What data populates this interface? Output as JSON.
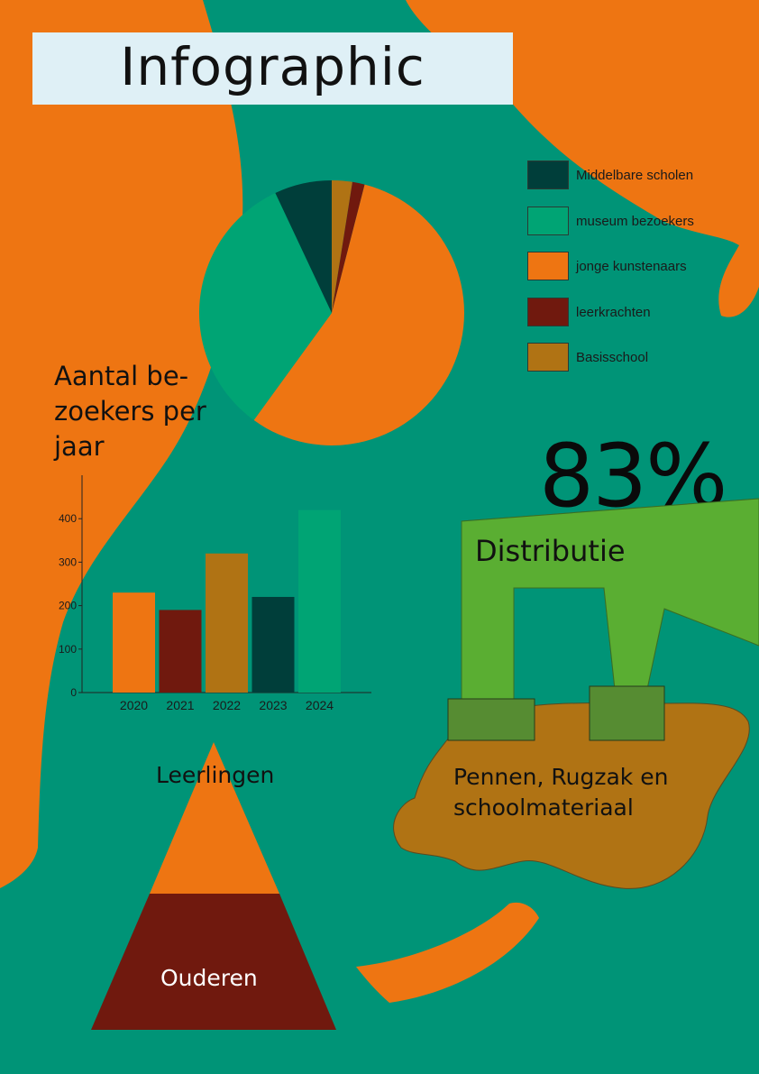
{
  "title": "Infographic",
  "colors": {
    "background": "#009477",
    "orange": "#ee7512",
    "dark_teal": "#003e3a",
    "green": "#00a474",
    "maroon": "#70190e",
    "ochre": "#b07314",
    "lime": "#5aae32",
    "title_box": "#dff0f6"
  },
  "pie": {
    "chart_data": {
      "type": "pie",
      "slices": [
        {
          "label": "Middelbare scholen",
          "value": 7,
          "color": "#003e3a"
        },
        {
          "label": "museum bezoekers",
          "value": 33,
          "color": "#00a474"
        },
        {
          "label": "jonge kunstenaars",
          "value": 56,
          "color": "#ee7512"
        },
        {
          "label": "leerkrachten",
          "value": 1.5,
          "color": "#70190e"
        },
        {
          "label": "Basisschool",
          "value": 2.5,
          "color": "#b07314"
        }
      ]
    },
    "legend": [
      {
        "label": "Middelbare scholen",
        "color": "#003e3a"
      },
      {
        "label": "museum bezoekers",
        "color": "#00a474"
      },
      {
        "label": "jonge kunstenaars",
        "color": "#ee7512"
      },
      {
        "label": "leerkrachten",
        "color": "#70190e"
      },
      {
        "label": "Basisschool",
        "color": "#b07314"
      }
    ]
  },
  "bar": {
    "title_lines": [
      "Aantal be-",
      "zoekers per",
      "jaar"
    ],
    "chart_data": {
      "type": "bar",
      "categories": [
        "2020",
        "2021",
        "2022",
        "2023",
        "2024"
      ],
      "values": [
        230,
        190,
        320,
        220,
        420
      ],
      "colors": [
        "#ee7512",
        "#70190e",
        "#b07314",
        "#003e3a",
        "#00a474"
      ],
      "ylim": [
        0,
        500
      ],
      "yticks": [
        "0",
        "100",
        "200",
        "300",
        "400"
      ],
      "xlabel": "",
      "ylabel": ""
    }
  },
  "distribution": {
    "percentage": "83%",
    "label": "Distributie",
    "school_lines": [
      "Pennen, Rugzak en",
      "schoolmateriaal"
    ]
  },
  "pyramid": {
    "top_label": "Leerlingen",
    "bottom_label": "Ouderen"
  }
}
